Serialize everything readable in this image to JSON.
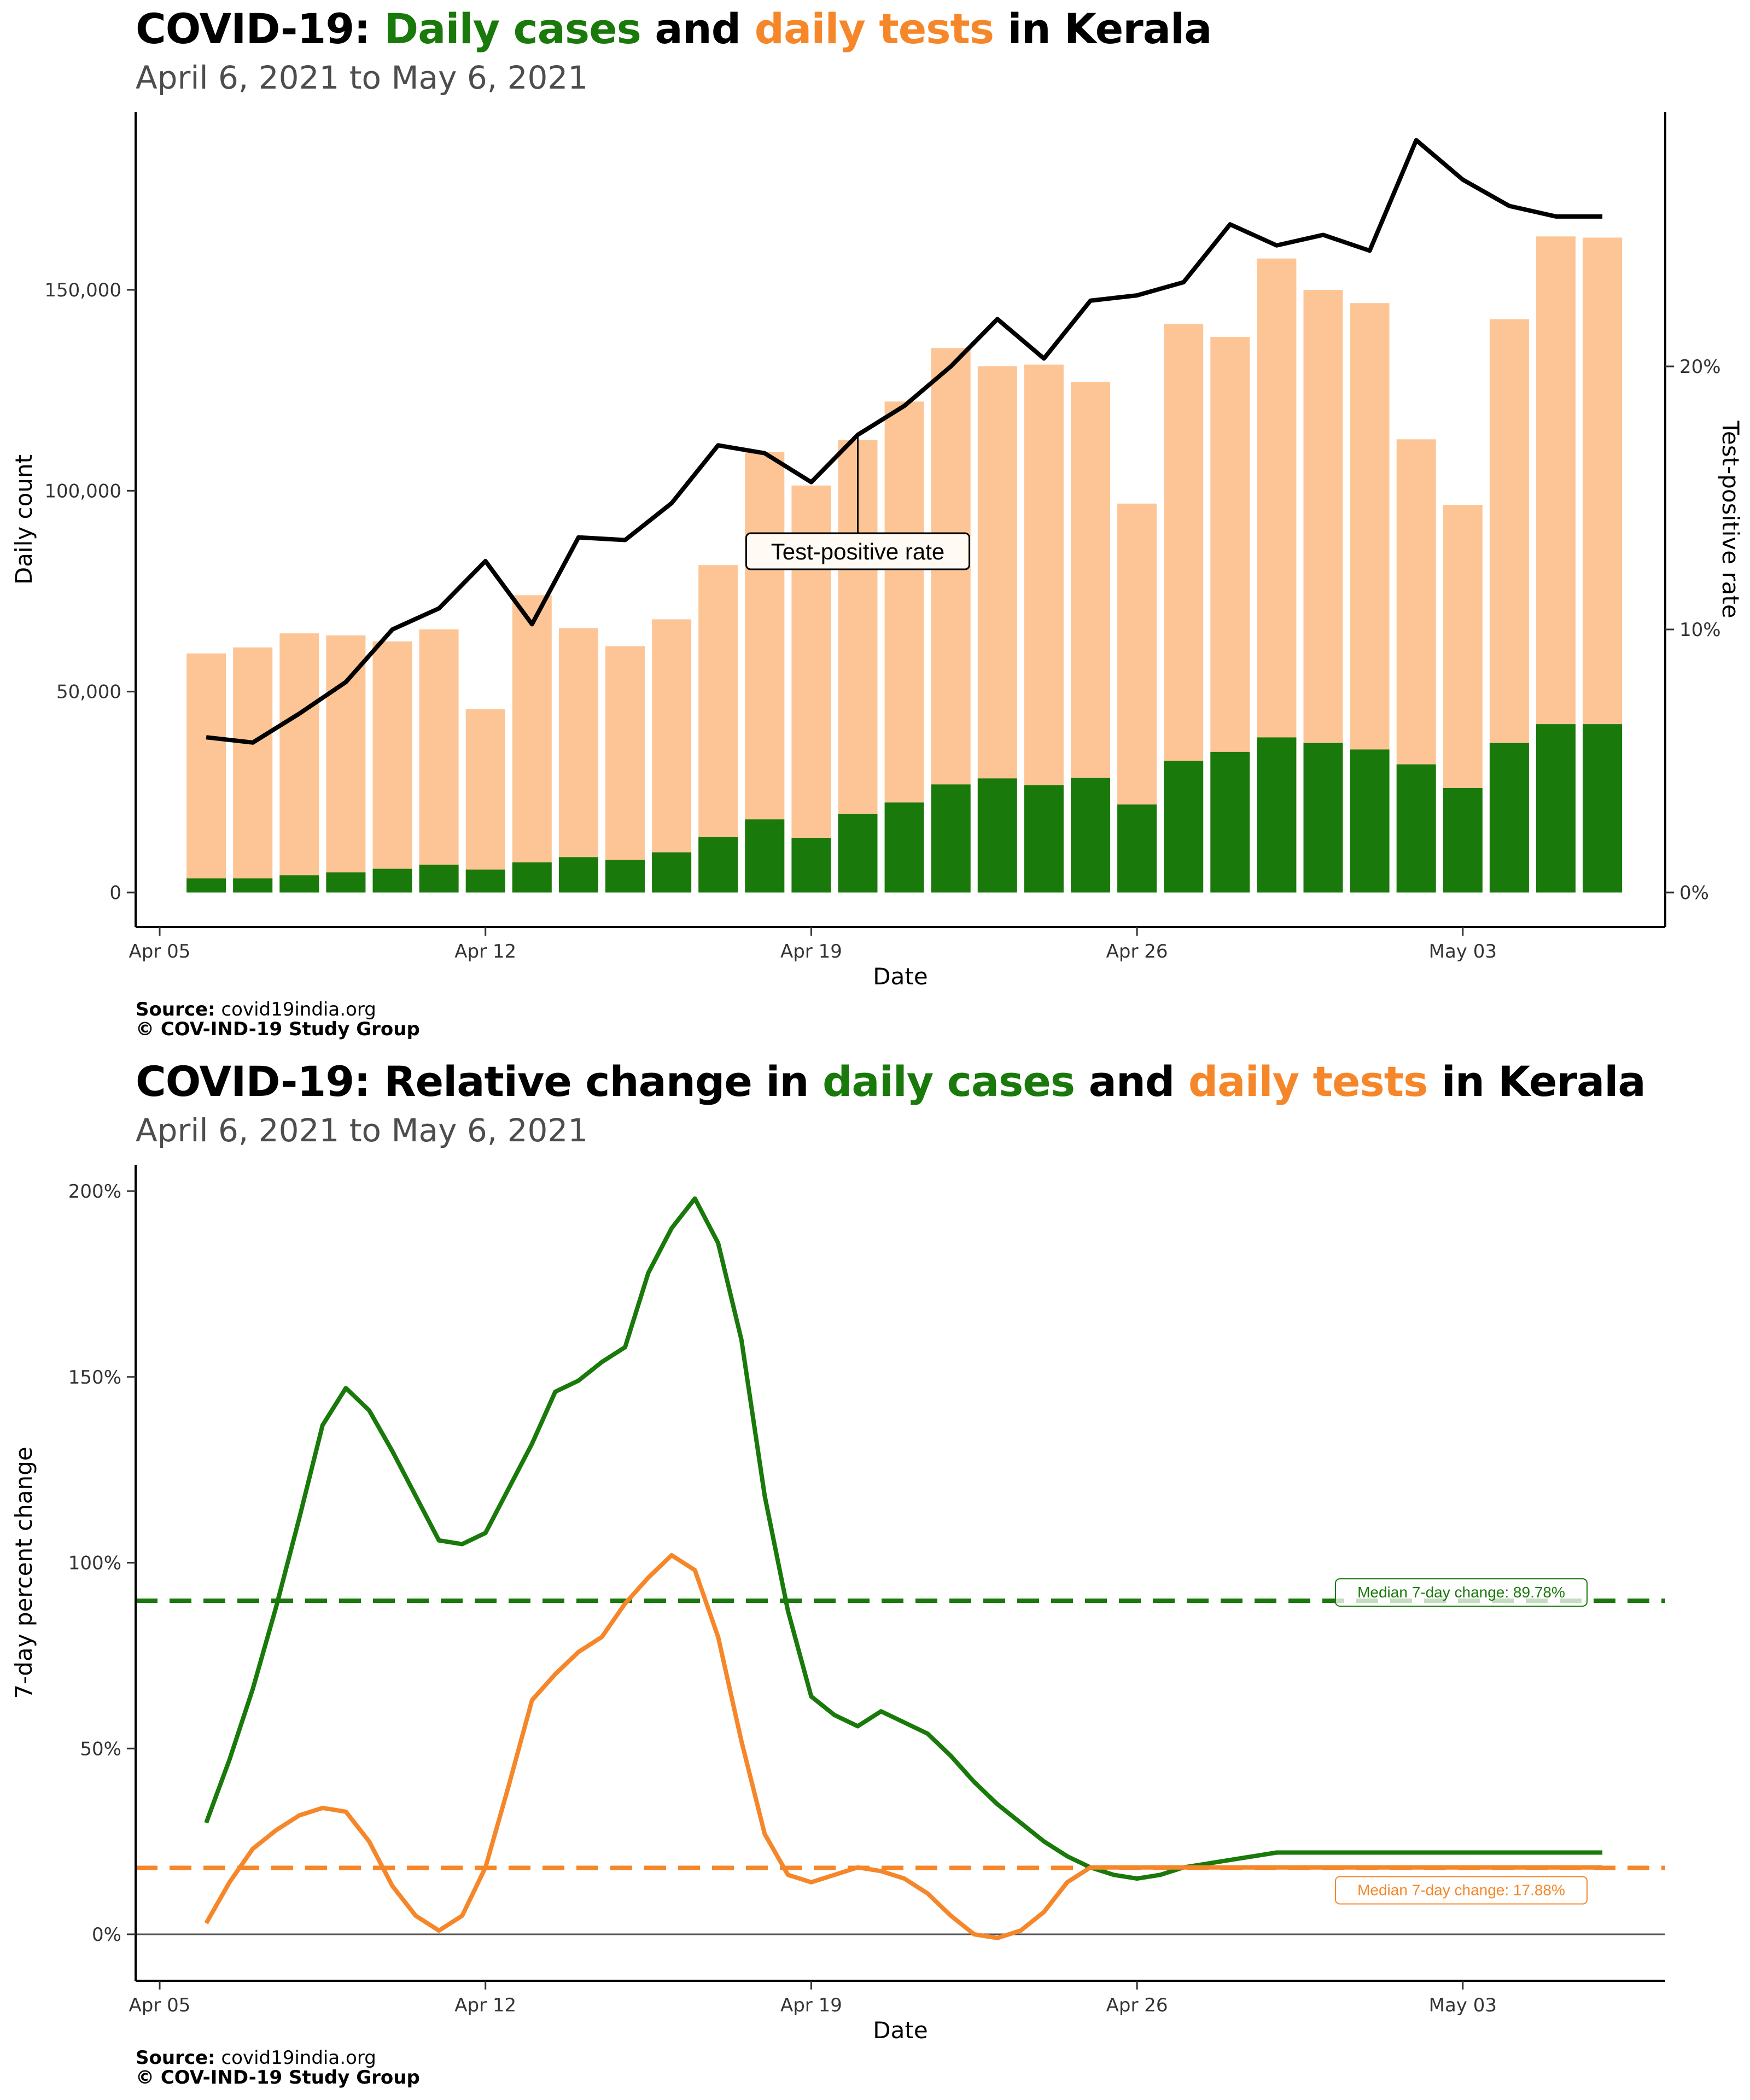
{
  "charts_text": {
    "c1": {
      "title_prefix": "COVID-19: ",
      "title_green": "Daily cases",
      "title_mid": " and ",
      "title_orange": "daily tests",
      "title_suffix": " in Kerala",
      "subtitle": "April  6, 2021 to May  6, 2021",
      "source_label": "Source:",
      "source_value": " covid19india.org",
      "copyright": "© COV-IND-19 Study Group"
    },
    "c2": {
      "title_prefix": "COVID-19: Relative change in ",
      "title_green": "daily cases",
      "title_mid": " and ",
      "title_orange": "daily tests",
      "title_suffix": " in Kerala",
      "subtitle": "April  6, 2021 to May  6, 2021",
      "source_label": "Source:",
      "source_value": " covid19india.org",
      "copyright": "© COV-IND-19 Study Group"
    }
  },
  "colors": {
    "cases": "#19790a",
    "tests": "#fdc596",
    "tests_line": "#f5872a",
    "tpr_line": "#000000"
  },
  "chart_data": [
    {
      "type": "bar",
      "title": "COVID-19: Daily cases and daily tests in Kerala",
      "subtitle": "April  6, 2021 to May  6, 2021",
      "xlabel": "Date",
      "ylabel": "Daily count",
      "y2label": "Test-positive rate",
      "dates": [
        "Apr 06",
        "Apr 07",
        "Apr 08",
        "Apr 09",
        "Apr 10",
        "Apr 11",
        "Apr 12",
        "Apr 13",
        "Apr 14",
        "Apr 15",
        "Apr 16",
        "Apr 17",
        "Apr 18",
        "Apr 19",
        "Apr 20",
        "Apr 21",
        "Apr 22",
        "Apr 23",
        "Apr 24",
        "Apr 25",
        "Apr 26",
        "Apr 27",
        "Apr 28",
        "Apr 29",
        "Apr 30",
        "May 01",
        "May 02",
        "May 03",
        "May 04",
        "May 05",
        "May 06"
      ],
      "x_tick_labels": [
        "Apr 05",
        "Apr 12",
        "Apr 19",
        "Apr 26",
        "May 03"
      ],
      "y_ticks": [
        "0",
        "50,000",
        "100,000",
        "150,000"
      ],
      "y2_ticks": [
        "0%",
        "10%",
        "20%"
      ],
      "ylim": [
        0,
        193000
      ],
      "y2lim": [
        0,
        29.4
      ],
      "series": [
        {
          "name": "Daily tests",
          "values": [
            59500,
            61000,
            64500,
            64000,
            62500,
            65500,
            45600,
            74000,
            65800,
            61300,
            68000,
            81500,
            109700,
            101300,
            112600,
            122200,
            135500,
            131000,
            131400,
            127100,
            96800,
            141500,
            138300,
            157800,
            150000,
            146700,
            112800,
            96500,
            142700,
            163300,
            163000
          ]
        },
        {
          "name": "Daily cases",
          "values": [
            3500,
            3500,
            4300,
            5000,
            5900,
            6900,
            5700,
            7500,
            8800,
            8100,
            10000,
            13800,
            18200,
            13600,
            19600,
            22400,
            26900,
            28400,
            26700,
            28500,
            21900,
            32800,
            35000,
            38600,
            37200,
            35600,
            31900,
            26000,
            37200,
            41900,
            41900
          ]
        },
        {
          "name": "Test-positive rate",
          "values": [
            5.9,
            5.7,
            6.8,
            8.0,
            10.0,
            10.8,
            12.6,
            10.2,
            13.5,
            13.4,
            14.8,
            17.0,
            16.7,
            15.6,
            17.4,
            18.5,
            20.0,
            21.8,
            20.3,
            22.5,
            22.7,
            23.2,
            25.4,
            24.6,
            25.0,
            24.4,
            28.6,
            27.1,
            26.1,
            25.7,
            25.7
          ]
        }
      ],
      "annotation": "Test-positive rate"
    },
    {
      "type": "line",
      "title": "COVID-19: Relative change in daily cases and daily tests in Kerala",
      "subtitle": "April  6, 2021 to May  6, 2021",
      "xlabel": "Date",
      "ylabel": "7-day percent change",
      "x_tick_labels": [
        "Apr 05",
        "Apr 12",
        "Apr 19",
        "Apr 26",
        "May 03"
      ],
      "y_ticks": [
        "0%",
        "50%",
        "100%",
        "150%",
        "200%"
      ],
      "ylim": [
        -8,
        210
      ],
      "median_cases_label": "Median 7-day change: 89.78%",
      "median_tests_label": "Median 7-day change: 17.88%",
      "median_cases": 89.78,
      "median_tests": 17.88,
      "series": [
        {
          "name": "Daily cases",
          "t": [
            0,
            0.5,
            1,
            1.5,
            2,
            2.5,
            3,
            3.5,
            4,
            4.5,
            5,
            5.5,
            6,
            6.5,
            7,
            7.5,
            8,
            8.5,
            9,
            9.5,
            10,
            10.5,
            11,
            11.5,
            12,
            12.5,
            13,
            13.5,
            14,
            14.5,
            15,
            15.5,
            16,
            16.5,
            17,
            17.5,
            18,
            18.5,
            19,
            19.5,
            20,
            20.5,
            21,
            21.5,
            22,
            22.5,
            23,
            23.5,
            24,
            24.5,
            25,
            25.5,
            26,
            26.5,
            27,
            27.5,
            28,
            28.5,
            29,
            29.5,
            30
          ],
          "values": [
            30,
            47,
            66,
            88,
            112,
            137,
            147,
            141,
            130,
            118,
            106,
            105,
            108,
            120,
            132,
            146,
            149,
            154,
            158,
            178,
            190,
            198,
            186,
            160,
            118,
            87,
            64,
            59,
            56,
            60,
            57,
            54,
            48,
            41,
            35,
            30,
            25,
            21,
            18,
            16,
            15,
            16,
            18,
            19,
            20,
            21,
            22,
            22,
            22,
            22,
            22,
            22,
            22,
            22,
            22,
            22,
            22,
            22,
            22,
            22,
            22
          ]
        },
        {
          "name": "Daily tests",
          "t": [
            0,
            0.5,
            1,
            1.5,
            2,
            2.5,
            3,
            3.5,
            4,
            4.5,
            5,
            5.5,
            6,
            6.5,
            7,
            7.5,
            8,
            8.5,
            9,
            9.5,
            10,
            10.5,
            11,
            11.5,
            12,
            12.5,
            13,
            13.5,
            14,
            14.5,
            15,
            15.5,
            16,
            16.5,
            17,
            17.5,
            18,
            18.5,
            19,
            19.5,
            20,
            20.5,
            21,
            21.5,
            22,
            22.5,
            23,
            23.5,
            24,
            24.5,
            25,
            25.5,
            26,
            26.5,
            27,
            27.5,
            28,
            28.5,
            29,
            29.5,
            30
          ],
          "values": [
            3,
            14,
            23,
            28,
            32,
            34,
            33,
            25,
            13,
            5,
            1,
            5,
            18,
            40,
            63,
            70,
            76,
            80,
            89,
            96,
            102,
            98,
            80,
            52,
            27,
            16,
            14,
            16,
            18,
            17,
            15,
            11,
            5,
            0,
            -1,
            1,
            6,
            14,
            18,
            18,
            18,
            18,
            18,
            18,
            18,
            18,
            18,
            18,
            18,
            18,
            18,
            18,
            18,
            18,
            18,
            18,
            18,
            18,
            18,
            18,
            18
          ]
        }
      ]
    }
  ]
}
